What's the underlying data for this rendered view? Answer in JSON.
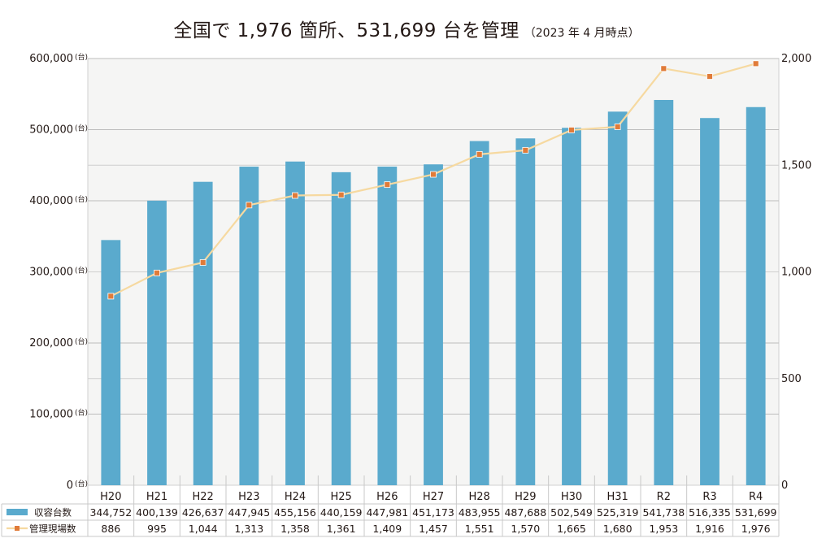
{
  "chart_data": {
    "type": "bar",
    "title": "全国で 1,976 箇所、531,699 台を管理",
    "subtitle": "（2023 年 4 月時点）",
    "categories": [
      "H20",
      "H21",
      "H22",
      "H23",
      "H24",
      "H25",
      "H26",
      "H27",
      "H28",
      "H29",
      "H30",
      "H31",
      "R2",
      "R3",
      "R4"
    ],
    "series": [
      {
        "name": "収容台数",
        "type": "bar",
        "axis": "left",
        "color": "#5aaacd",
        "values": [
          344752,
          400139,
          426637,
          447945,
          455156,
          440159,
          447981,
          451173,
          483955,
          487688,
          502549,
          525319,
          541738,
          516335,
          531699
        ],
        "labels": [
          "344,752",
          "400,139",
          "426,637",
          "447,945",
          "455,156",
          "440,159",
          "447,981",
          "451,173",
          "483,955",
          "487,688",
          "502,549",
          "525,319",
          "541,738",
          "516,335",
          "531,699"
        ]
      },
      {
        "name": "管理現場数",
        "type": "line",
        "axis": "right",
        "color": "#f6d9a0",
        "marker_color": "#e07b39",
        "values": [
          886,
          995,
          1044,
          1313,
          1358,
          1361,
          1409,
          1457,
          1551,
          1570,
          1665,
          1680,
          1953,
          1916,
          1976
        ],
        "labels": [
          "886",
          "995",
          "1,044",
          "1,313",
          "1,358",
          "1,361",
          "1,409",
          "1,457",
          "1,551",
          "1,570",
          "1,665",
          "1,680",
          "1,953",
          "1,916",
          "1,976"
        ]
      }
    ],
    "left_axis": {
      "ylim": [
        0,
        600000
      ],
      "ticks": [
        {
          "value": 0,
          "label": "0"
        },
        {
          "value": 100000,
          "label": "100,000"
        },
        {
          "value": 200000,
          "label": "200,000"
        },
        {
          "value": 300000,
          "label": "300,000"
        },
        {
          "value": 400000,
          "label": "400,000"
        },
        {
          "value": 500000,
          "label": "500,000"
        },
        {
          "value": 600000,
          "label": "600,000"
        }
      ],
      "unit": "(台)"
    },
    "right_axis": {
      "ylim": [
        0,
        2000
      ],
      "ticks": [
        {
          "value": 0,
          "label": "0"
        },
        {
          "value": 500,
          "label": "500"
        },
        {
          "value": 1000,
          "label": "1,000"
        },
        {
          "value": 1500,
          "label": "1,500"
        },
        {
          "value": 2000,
          "label": "2,000"
        }
      ]
    },
    "grid": true,
    "legend": "bottom-left data table"
  }
}
